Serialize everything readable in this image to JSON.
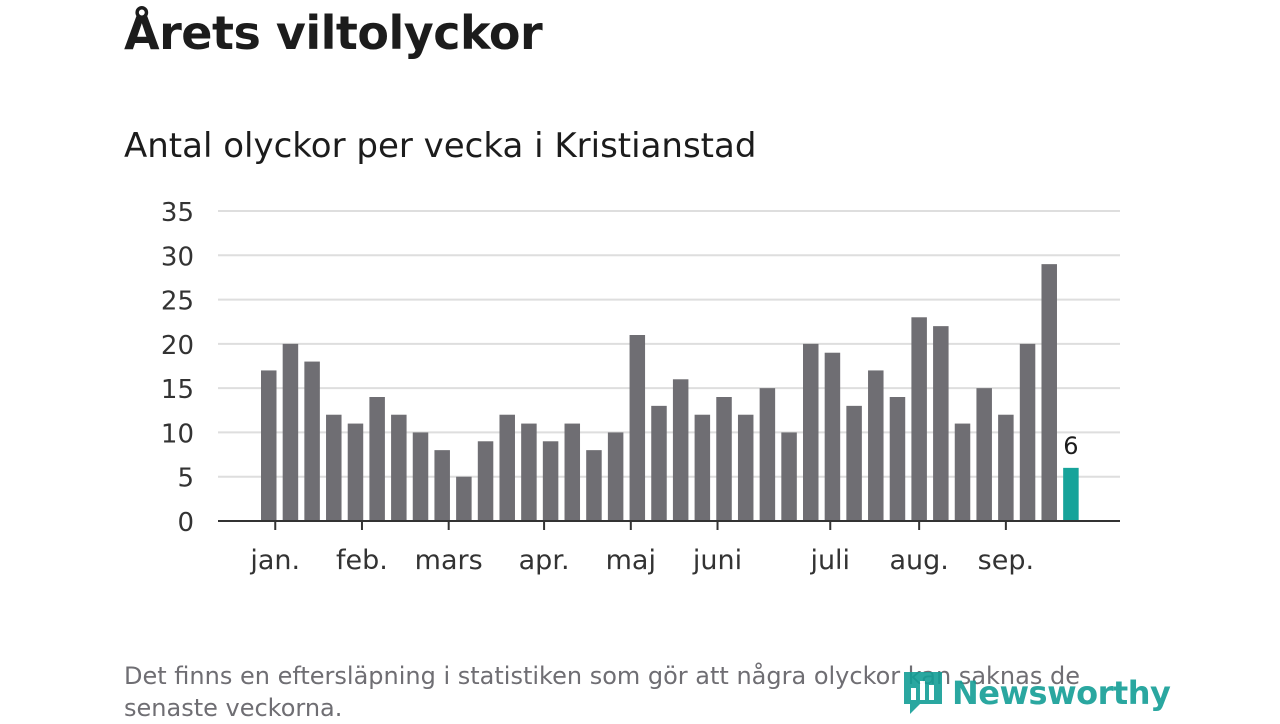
{
  "header": {
    "title": "Årets viltolyckor",
    "subtitle": "Antal olyckor per vecka i Kristianstad"
  },
  "footnote": "Det finns en eftersläpning i statistiken som gör att några olyckor kan saknas de senaste veckorna.",
  "brand": {
    "name": "Newsworthy",
    "icon": "bar-chart-speech-bubble-icon",
    "color": "#149e96"
  },
  "chart_data": {
    "type": "bar",
    "title": "Antal olyckor per vecka i Kristianstad",
    "xlabel": "",
    "ylabel": "",
    "ylim": [
      0,
      35
    ],
    "yticks": [
      0,
      5,
      10,
      15,
      20,
      25,
      30,
      35
    ],
    "grid": true,
    "values": [
      17,
      20,
      18,
      12,
      11,
      14,
      12,
      10,
      8,
      5,
      9,
      12,
      11,
      9,
      11,
      8,
      10,
      21,
      13,
      16,
      12,
      14,
      12,
      15,
      10,
      20,
      19,
      13,
      17,
      14,
      23,
      22,
      11,
      15,
      12,
      20,
      29,
      6
    ],
    "month_labels": [
      {
        "label": "jan.",
        "bar_index": 0.3
      },
      {
        "label": "feb.",
        "bar_index": 4.3
      },
      {
        "label": "mars",
        "bar_index": 8.3
      },
      {
        "label": "apr.",
        "bar_index": 12.7
      },
      {
        "label": "maj",
        "bar_index": 16.7
      },
      {
        "label": "juni",
        "bar_index": 20.7
      },
      {
        "label": "juli",
        "bar_index": 25.9
      },
      {
        "label": "aug.",
        "bar_index": 30.0
      },
      {
        "label": "sep.",
        "bar_index": 34.0
      }
    ],
    "highlight": {
      "bar_index": 37,
      "label": "6",
      "color": "#16a39a"
    },
    "bar_color": "#6f6e73",
    "grid_color": "#dedede",
    "axis_color": "#333333"
  }
}
